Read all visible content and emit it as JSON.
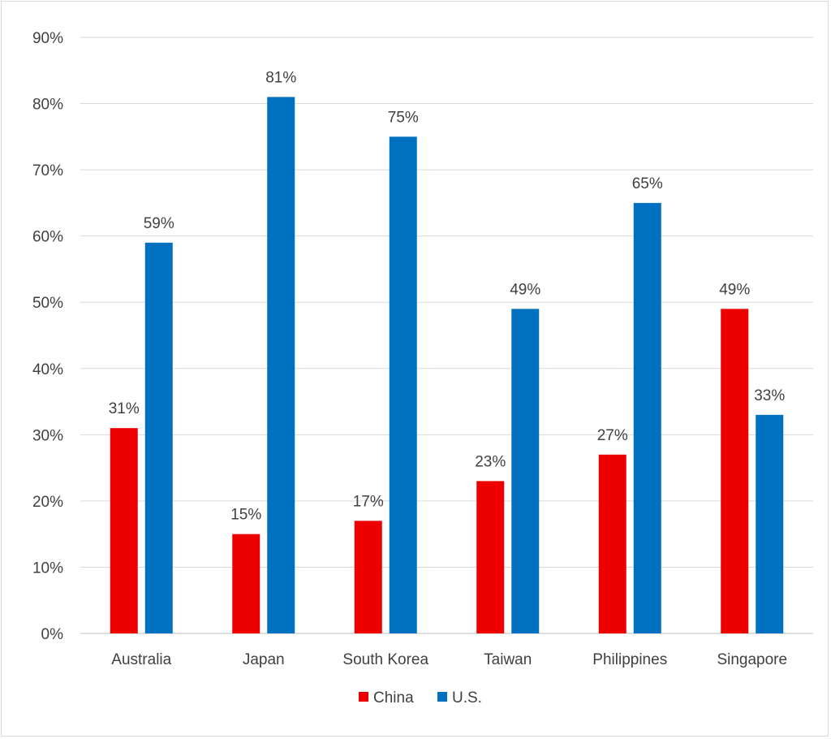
{
  "chart_data": {
    "type": "bar",
    "title": "",
    "xlabel": "",
    "ylabel": "",
    "categories": [
      "Australia",
      "Japan",
      "South Korea",
      "Taiwan",
      "Philippines",
      "Singapore"
    ],
    "series": [
      {
        "name": "China",
        "color": "#ee0000",
        "values": [
          31,
          15,
          17,
          23,
          27,
          49
        ]
      },
      {
        "name": "U.S.",
        "color": "#0070c0",
        "values": [
          59,
          81,
          75,
          49,
          65,
          33
        ]
      }
    ],
    "data_labels": [
      [
        "31%",
        "15%",
        "17%",
        "23%",
        "27%",
        "49%"
      ],
      [
        "59%",
        "81%",
        "75%",
        "49%",
        "65%",
        "33%"
      ]
    ],
    "ylim": [
      0,
      90
    ],
    "yticks": [
      0,
      10,
      20,
      30,
      40,
      50,
      60,
      70,
      80,
      90
    ],
    "ytick_labels": [
      "0%",
      "10%",
      "20%",
      "30%",
      "40%",
      "50%",
      "60%",
      "70%",
      "80%",
      "90%"
    ],
    "grid": true,
    "legend_position": "bottom"
  }
}
